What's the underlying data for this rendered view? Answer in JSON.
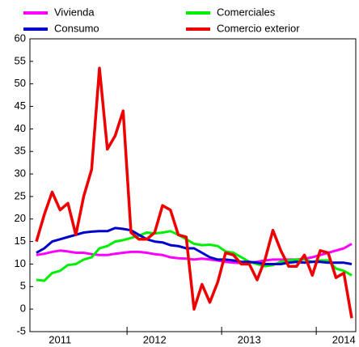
{
  "chart_data": {
    "type": "line",
    "categories": [
      null,
      null,
      null,
      "2011",
      null,
      null,
      null,
      null,
      null,
      null,
      null,
      null,
      null,
      null,
      null,
      "2012",
      null,
      null,
      null,
      null,
      null,
      null,
      null,
      null,
      null,
      null,
      null,
      "2013",
      null,
      null,
      null,
      null,
      null,
      null,
      null,
      null,
      null,
      null,
      null,
      "2014",
      null
    ],
    "series": [
      {
        "name": "Vivienda",
        "color": "#ff00ff",
        "values": [
          12,
          12.3,
          12.7,
          13,
          12.8,
          12.5,
          12.5,
          12.2,
          12,
          12,
          12.3,
          12.5,
          12.7,
          12.7,
          12.5,
          12.2,
          12,
          11.5,
          11.3,
          11.2,
          11,
          11.2,
          11,
          10.8,
          10.5,
          10.3,
          10.2,
          10.3,
          10.5,
          10.8,
          11,
          11,
          11,
          11,
          11.2,
          11.5,
          12,
          12.5,
          13,
          13.5,
          14.5
        ]
      },
      {
        "name": "Comerciales",
        "color": "#00ee00",
        "values": [
          6.5,
          6.3,
          8,
          8.5,
          9.8,
          10,
          11,
          11.5,
          13.5,
          14,
          15,
          15.3,
          15.8,
          16.3,
          17,
          16.8,
          17,
          17.3,
          16.5,
          15.5,
          14.5,
          14.2,
          14.3,
          14,
          12.8,
          12.5,
          11.5,
          10.5,
          10,
          9.5,
          9.8,
          10.5,
          10.8,
          11,
          11,
          10.5,
          10.8,
          10.8,
          9,
          8.5,
          7.5
        ]
      },
      {
        "name": "Consumo",
        "color": "#0000cc",
        "values": [
          12.5,
          13.5,
          15,
          15.5,
          16,
          16.5,
          17,
          17.2,
          17.3,
          17.3,
          18,
          17.8,
          17.5,
          16.5,
          15.5,
          15,
          14.8,
          14.2,
          14,
          13.5,
          13.5,
          12.5,
          11.5,
          11,
          11,
          10.8,
          10.5,
          10.5,
          10.3,
          10,
          10,
          10,
          10.3,
          10.5,
          10.3,
          10.5,
          10.5,
          10.3,
          10.3,
          10.3,
          10
        ]
      },
      {
        "name": "Comercio exterior",
        "color": "#ee0000",
        "values": [
          15,
          21,
          26,
          22,
          23.5,
          16.5,
          25,
          31,
          53.5,
          35.5,
          38.5,
          44,
          17,
          15.5,
          15.5,
          17,
          23,
          22,
          16.5,
          16,
          0,
          5.5,
          1.5,
          6,
          12.5,
          12,
          10,
          10,
          6.5,
          11,
          17.5,
          13,
          9.5,
          9.5,
          12,
          7.5,
          13,
          12.5,
          7,
          8,
          -2
        ]
      }
    ],
    "ylim": [
      -5,
      60
    ],
    "yticks": [
      -5,
      0,
      5,
      10,
      15,
      20,
      25,
      30,
      35,
      40,
      45,
      50,
      55,
      60
    ]
  }
}
